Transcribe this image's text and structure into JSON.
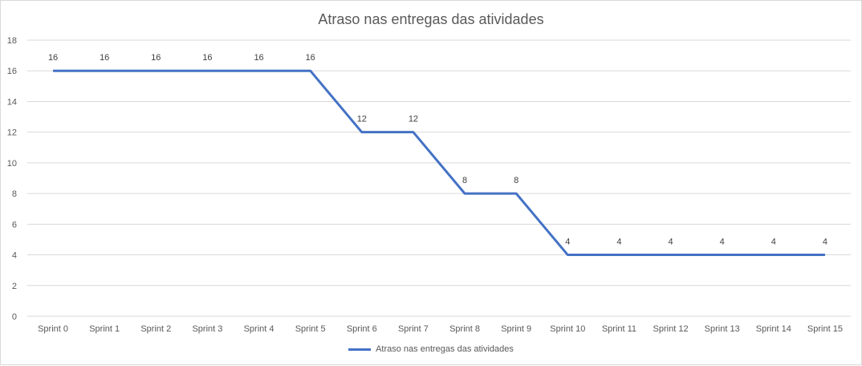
{
  "chart_data": {
    "type": "line",
    "title": "Atraso nas entregas das atividades",
    "xlabel": "",
    "ylabel": "",
    "categories": [
      "Sprint 0",
      "Sprint 1",
      "Sprint 2",
      "Sprint 3",
      "Sprint 4",
      "Sprint 5",
      "Sprint 6",
      "Sprint 7",
      "Sprint 8",
      "Sprint 9",
      "Sprint 10",
      "Sprint 11",
      "Sprint 12",
      "Sprint 13",
      "Sprint 14",
      "Sprint 15"
    ],
    "series": [
      {
        "name": "Atraso nas entregas das atividades",
        "values": [
          16,
          16,
          16,
          16,
          16,
          16,
          12,
          12,
          8,
          8,
          4,
          4,
          4,
          4,
          4,
          4
        ],
        "color": "#4472c4"
      }
    ],
    "ylim": [
      0,
      18
    ],
    "yticks": [
      0,
      2,
      4,
      6,
      8,
      10,
      12,
      14,
      16,
      18
    ],
    "grid": true,
    "data_labels": true,
    "legend_position": "bottom"
  }
}
